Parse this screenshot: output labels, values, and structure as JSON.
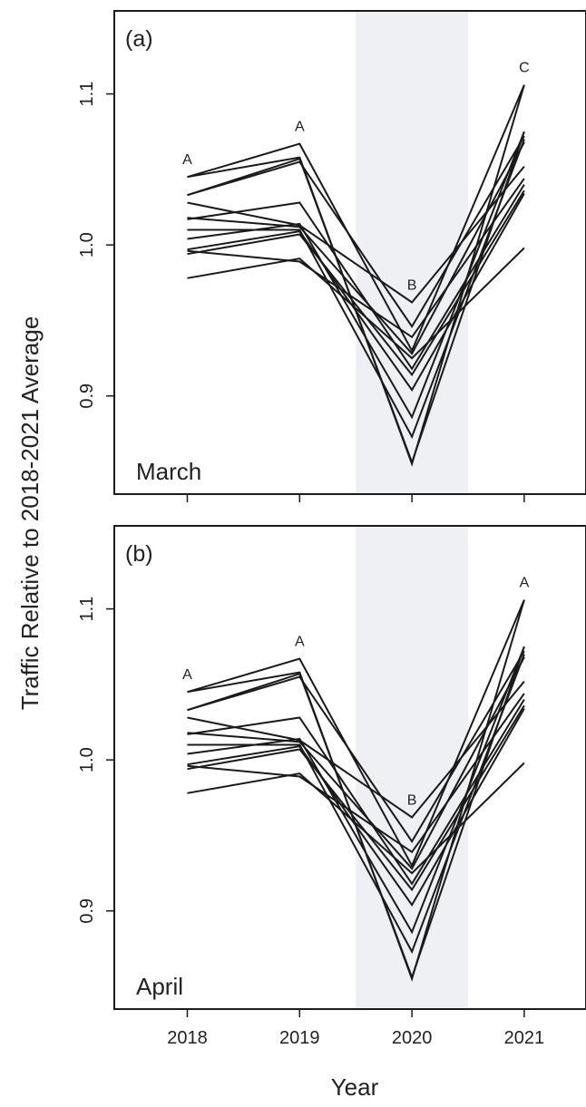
{
  "figure": {
    "ylabel": "Traffic Relative to 2018-2021 Average",
    "xlabel": "Year",
    "colors": {
      "line": "#1a1a1a",
      "shade": "#eef0f3",
      "frame": "#1a1a1a"
    }
  },
  "chart_data": [
    {
      "type": "line",
      "panel_tag": "(a)",
      "month": "March",
      "x": [
        2018,
        2019,
        2020,
        2021
      ],
      "xticks": [
        "2018",
        "2019",
        "2020",
        "2021"
      ],
      "yticks": [
        "0.9",
        "1.0",
        "1.1"
      ],
      "ylim": [
        0.835,
        1.155
      ],
      "xlim": [
        2017.35,
        2021.55
      ],
      "shaded_x": [
        2019.5,
        2020.5
      ],
      "grid": false,
      "letters": [
        "A",
        "A",
        "B",
        "C"
      ],
      "series": [
        {
          "values": [
            1.045,
            1.058,
            0.855,
            1.106
          ]
        },
        {
          "values": [
            1.045,
            1.067,
            0.93,
            1.106
          ]
        },
        {
          "values": [
            1.033,
            1.057,
            0.856,
            1.075
          ]
        },
        {
          "values": [
            1.033,
            1.055,
            0.946,
            1.072
          ]
        },
        {
          "values": [
            1.028,
            1.013,
            0.962,
            1.052
          ]
        },
        {
          "values": [
            1.018,
            1.012,
            0.928,
            1.068
          ]
        },
        {
          "values": [
            1.017,
            1.028,
            0.918,
            1.04
          ]
        },
        {
          "values": [
            1.01,
            1.01,
            0.873,
            1.07
          ]
        },
        {
          "values": [
            1.004,
            1.014,
            0.886,
            1.075
          ]
        },
        {
          "values": [
            0.997,
            1.009,
            0.904,
            1.034
          ]
        },
        {
          "values": [
            0.994,
            1.007,
            0.914,
            1.036
          ]
        },
        {
          "values": [
            0.978,
            0.991,
            0.925,
            0.998
          ]
        },
        {
          "values": [
            0.996,
            0.989,
            0.939,
            1.044
          ]
        }
      ]
    },
    {
      "type": "line",
      "panel_tag": "(b)",
      "month": "April",
      "x": [
        2018,
        2019,
        2020,
        2021
      ],
      "xticks": [
        "2018",
        "2019",
        "2020",
        "2021"
      ],
      "yticks": [
        "0.9",
        "1.0",
        "1.1"
      ],
      "ylim": [
        0.835,
        1.155
      ],
      "xlim": [
        2017.35,
        2021.55
      ],
      "shaded_x": [
        2019.5,
        2020.5
      ],
      "grid": false,
      "letters": [
        "A",
        "A",
        "B",
        "A"
      ],
      "series": [
        {
          "values": [
            1.045,
            1.058,
            0.855,
            1.106
          ]
        },
        {
          "values": [
            1.045,
            1.067,
            0.93,
            1.106
          ]
        },
        {
          "values": [
            1.033,
            1.057,
            0.856,
            1.075
          ]
        },
        {
          "values": [
            1.033,
            1.055,
            0.946,
            1.072
          ]
        },
        {
          "values": [
            1.028,
            1.013,
            0.962,
            1.052
          ]
        },
        {
          "values": [
            1.018,
            1.012,
            0.928,
            1.068
          ]
        },
        {
          "values": [
            1.017,
            1.028,
            0.918,
            1.04
          ]
        },
        {
          "values": [
            1.01,
            1.01,
            0.873,
            1.07
          ]
        },
        {
          "values": [
            1.004,
            1.014,
            0.886,
            1.075
          ]
        },
        {
          "values": [
            0.997,
            1.009,
            0.904,
            1.034
          ]
        },
        {
          "values": [
            0.994,
            1.007,
            0.914,
            1.036
          ]
        },
        {
          "values": [
            0.978,
            0.991,
            0.925,
            0.998
          ]
        },
        {
          "values": [
            0.996,
            0.989,
            0.939,
            1.044
          ]
        }
      ]
    }
  ]
}
